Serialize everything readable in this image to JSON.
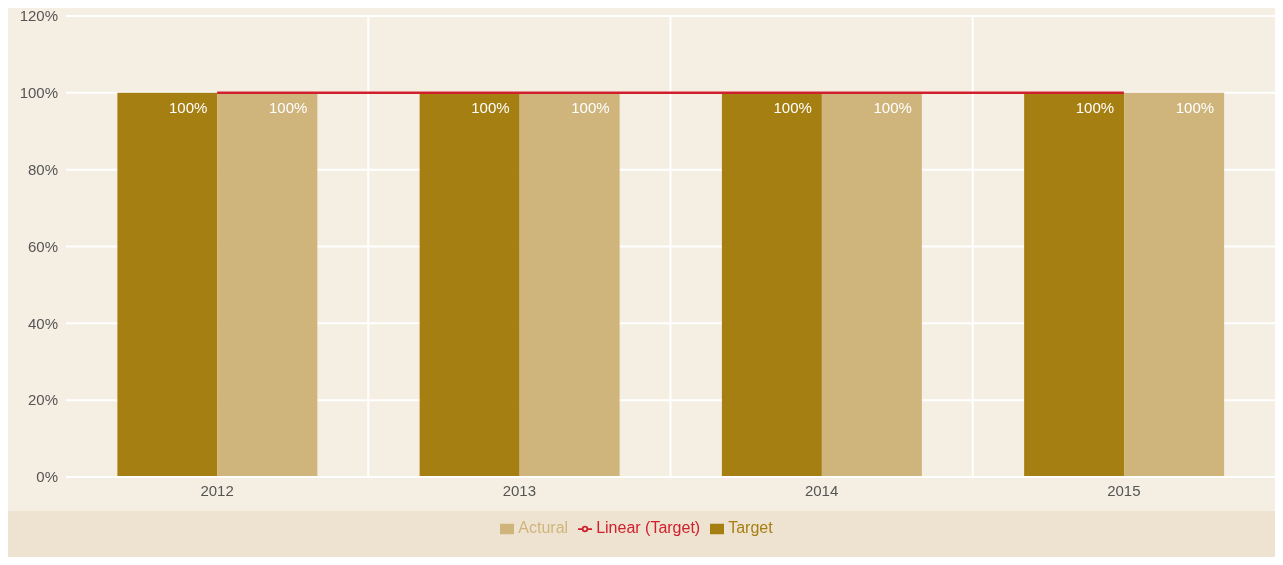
{
  "chart_data": {
    "type": "bar",
    "categories": [
      "2012",
      "2013",
      "2014",
      "2015"
    ],
    "series": [
      {
        "name": "Target",
        "color": "#a67f12",
        "values": [
          100,
          100,
          100,
          100
        ],
        "value_labels": [
          "100%",
          "100%",
          "100%",
          "100%"
        ]
      },
      {
        "name": "Actural",
        "color": "#cfb57c",
        "values": [
          100,
          100,
          100,
          100
        ],
        "value_labels": [
          "100%",
          "100%",
          "100%",
          "100%"
        ]
      },
      {
        "name": "Linear (Target)",
        "type": "line",
        "color": "#d0202e",
        "values": [
          100,
          100,
          100,
          100
        ]
      }
    ],
    "ylim": [
      0,
      120
    ],
    "yticks": [
      {
        "value": 0,
        "label": "0%"
      },
      {
        "value": 20,
        "label": "20%"
      },
      {
        "value": 40,
        "label": "40%"
      },
      {
        "value": 60,
        "label": "60%"
      },
      {
        "value": 80,
        "label": "80%"
      },
      {
        "value": 100,
        "label": "100%"
      },
      {
        "value": 120,
        "label": "120%"
      }
    ],
    "grid": true,
    "legend": "bottom",
    "marker": "none"
  }
}
